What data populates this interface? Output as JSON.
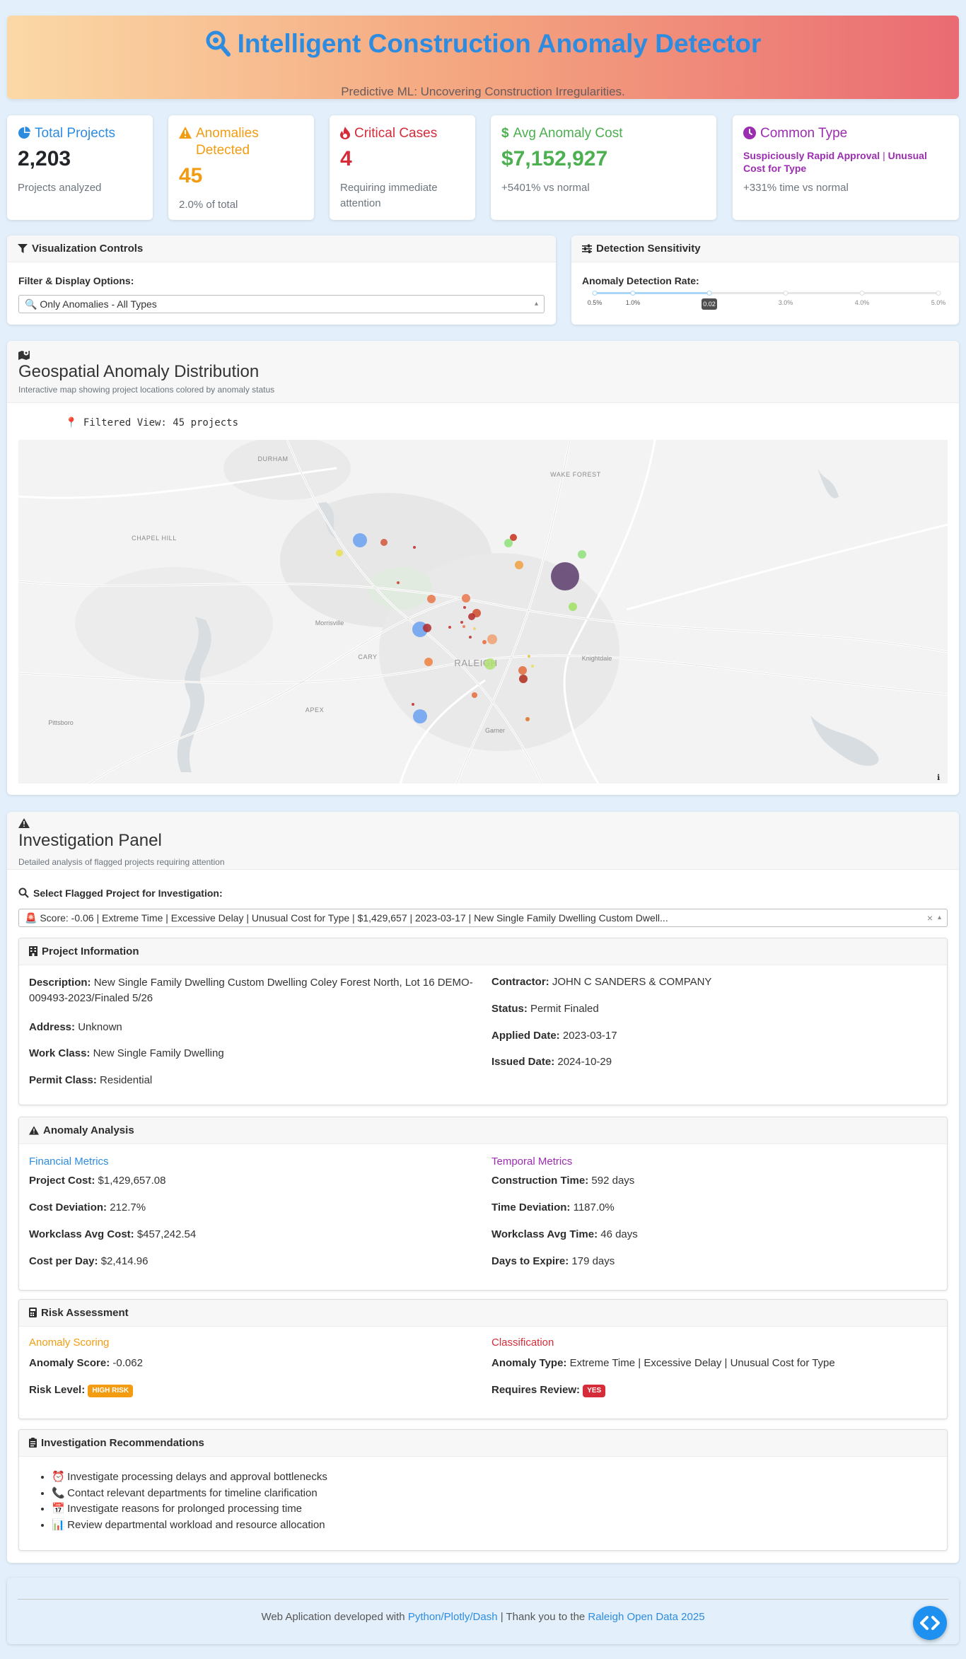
{
  "header": {
    "title": "Intelligent Construction Anomaly Detector",
    "subtitle": "Predictive ML: Uncovering Construction Irregularities."
  },
  "kpis": [
    {
      "title": "Total Projects",
      "value": "2,203",
      "note": "Projects analyzed",
      "color": "#2e8ce0",
      "icon": "pie-chart-icon"
    },
    {
      "title": "Anomalies Detected",
      "value": "45",
      "note": "2.0% of total",
      "color": "#f39c12",
      "icon": "warning-icon"
    },
    {
      "title": "Critical Cases",
      "value": "4",
      "note": "Requiring immediate attention",
      "color": "#d62c3a",
      "icon": "fire-icon"
    },
    {
      "title": "Avg Anomaly Cost",
      "value": "$7,152,927",
      "note": "+5401% vs normal",
      "color": "#4caf50",
      "icon": "dollar-icon"
    },
    {
      "title": "Common Type",
      "type_a": "Suspiciously Rapid Approval",
      "type_sep": "|",
      "type_b": "Unusual Cost for Type",
      "note": "+331% time vs normal",
      "color": "#9b2db0",
      "icon": "clock-icon"
    }
  ],
  "controls": {
    "title": "Visualization Controls",
    "filter_label": "Filter & Display Options:",
    "filter_value": "🔍 Only Anomalies - All Types"
  },
  "sensitivity": {
    "title": "Detection Sensitivity",
    "label": "Anomaly Detection Rate:",
    "value": 0.02,
    "value_label": "0.02",
    "marks": [
      "0.5%",
      "1.0%",
      "2.0%",
      "3.0%",
      "4.0%",
      "5.0%"
    ],
    "mark_values": [
      0.005,
      0.01,
      0.02,
      0.03,
      0.04,
      0.05
    ]
  },
  "map": {
    "title": "Geospatial Anomaly Distribution",
    "subtitle": "Interactive map showing project locations colored by anomaly status",
    "filtered_view": "📍 Filtered View: 45 projects",
    "places": [
      "DURHAM",
      "WAKE FOREST",
      "CHAPEL HILL",
      "Morrisville",
      "CARY",
      "RALEIGH",
      "Knightdale",
      "APEX",
      "Pittsboro",
      "Garner"
    ],
    "info_label": "ℹ"
  },
  "investigation": {
    "title": "Investigation Panel",
    "subtitle": "Detailed analysis of flagged projects requiring attention",
    "select_label": "Select Flagged Project for Investigation:",
    "select_value": "🚨 Score: -0.06 | Extreme Time | Excessive Delay | Unusual Cost for Type | $1,429,657 | 2023-03-17 | New Single Family Dwelling Custom Dwell...",
    "clear": "×"
  },
  "project_info": {
    "title": "Project Information",
    "description_label": "Description:",
    "description": "New Single Family Dwelling Custom Dwelling Coley Forest North, Lot 16 DEMO-009493-2023/Finaled 5/26",
    "address_label": "Address:",
    "address": "Unknown",
    "workclass_label": "Work Class:",
    "workclass": "New Single Family Dwelling",
    "permitclass_label": "Permit Class:",
    "permitclass": "Residential",
    "contractor_label": "Contractor:",
    "contractor": "JOHN C SANDERS & COMPANY",
    "status_label": "Status:",
    "status": "Permit Finaled",
    "applied_label": "Applied Date:",
    "applied": "2023-03-17",
    "issued_label": "Issued Date:",
    "issued": "2024-10-29"
  },
  "anomaly_analysis": {
    "title": "Anomaly Analysis",
    "financial_title": "Financial Metrics",
    "temporal_title": "Temporal Metrics",
    "financial": [
      {
        "label": "Project Cost:",
        "value": "$1,429,657.08"
      },
      {
        "label": "Cost Deviation:",
        "value": "212.7%"
      },
      {
        "label": "Workclass Avg Cost:",
        "value": "$457,242.54"
      },
      {
        "label": "Cost per Day:",
        "value": "$2,414.96"
      }
    ],
    "temporal": [
      {
        "label": "Construction Time:",
        "value": "592 days"
      },
      {
        "label": "Time Deviation:",
        "value": "1187.0%"
      },
      {
        "label": "Workclass Avg Time:",
        "value": "46 days"
      },
      {
        "label": "Days to Expire:",
        "value": "179 days"
      }
    ]
  },
  "risk": {
    "title": "Risk Assessment",
    "scoring_title": "Anomaly Scoring",
    "classification_title": "Classification",
    "score_label": "Anomaly Score:",
    "score": "-0.062",
    "level_label": "Risk Level:",
    "level": "HIGH RISK",
    "type_label": "Anomaly Type:",
    "type": "Extreme Time | Excessive Delay | Unusual Cost for Type",
    "review_label": "Requires Review:",
    "review": "YES"
  },
  "recommendations": {
    "title": "Investigation Recommendations",
    "items": [
      {
        "emoji": "⏰",
        "text": "Investigate processing delays and approval bottlenecks"
      },
      {
        "emoji": "📞",
        "text": "Contact relevant departments for timeline clarification"
      },
      {
        "emoji": "📅",
        "text": "Investigate reasons for prolonged processing time"
      },
      {
        "emoji": "📊",
        "text": "Review departmental workload and resource allocation"
      }
    ]
  },
  "footer": {
    "prefix": "Web Aplication developed with",
    "link1": "Python/Plotly/Dash",
    "middle": "| Thank you to the",
    "link2": "Raleigh Open Data 2025"
  }
}
